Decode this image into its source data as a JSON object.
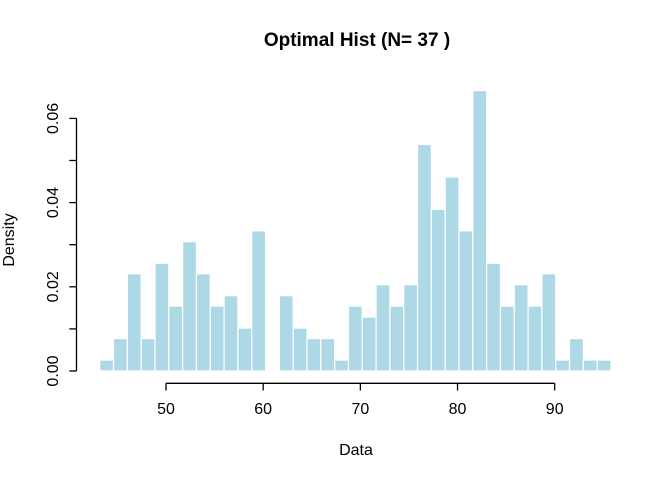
{
  "figure": {
    "title": "Optimal Hist (N= 37 )",
    "xlabel": "Data",
    "ylabel": "Density"
  },
  "chart_data": {
    "type": "bar",
    "subtype": "histogram",
    "title": "Optimal Hist (N= 37 )",
    "xlabel": "Data",
    "ylabel": "Density",
    "n_bins": 37,
    "bin_start": 43.18,
    "bin_width": 1.422,
    "densities": [
      0.0026,
      0.0077,
      0.0231,
      0.0077,
      0.0256,
      0.0154,
      0.0307,
      0.0231,
      0.0154,
      0.0179,
      0.0102,
      0.0333,
      0,
      0.0179,
      0.0102,
      0.0077,
      0.0077,
      0.0026,
      0.0154,
      0.0128,
      0.0205,
      0.0154,
      0.0205,
      0.0538,
      0.0384,
      0.0461,
      0.0333,
      0.0666,
      0.0256,
      0.0154,
      0.0205,
      0.0154,
      0.0231,
      0.0026,
      0.0077,
      0.0026,
      0.0026
    ],
    "x_ticks": [
      50,
      60,
      70,
      80,
      90
    ],
    "x_tick_labels": [
      "50",
      "60",
      "70",
      "80",
      "90"
    ],
    "y_tick_values": [
      0,
      0.01,
      0.02,
      0.03,
      0.04,
      0.05,
      0.06
    ],
    "y_tick_labels": [
      "0.00",
      "",
      "0.02",
      "",
      "0.04",
      "",
      "0.06"
    ],
    "xlim": [
      41.1,
      97.9
    ],
    "ylim": [
      0,
      0.0666
    ],
    "grid": false,
    "legend": false,
    "bar_color": "#ADD8E6",
    "bar_border": "#FFFFFF",
    "axis_color": "#000000",
    "background": "#FFFFFF"
  }
}
